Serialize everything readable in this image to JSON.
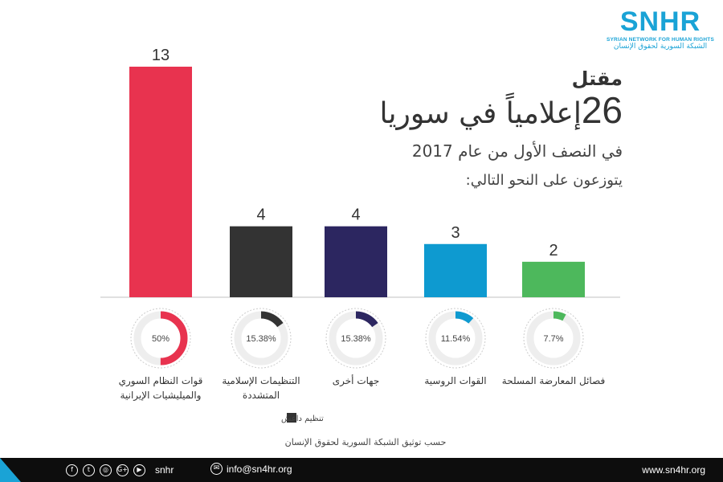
{
  "header": {
    "line1": "مقتل",
    "count": "26",
    "line2": "إعلامياً في سوريا",
    "line3": "في النصف الأول من عام 2017",
    "line4": "يتوزعون على النحو التالي:"
  },
  "logo": {
    "main": "SNHR",
    "english": "SYRIAN NETWORK FOR HUMAN RIGHTS",
    "arabic": "الشبكة السورية لحقوق الإنسان"
  },
  "colors": {
    "regime": "#e8334f",
    "islamist": "#333333",
    "other": "#2c2660",
    "russia": "#0e9ad0",
    "opposition": "#4db85c",
    "ring_track": "#cfcfcf",
    "brand": "#1aa3d6"
  },
  "chart_data": {
    "type": "bar",
    "categories": [
      "قوات النظام السوري\nوالميليشيات الإيرانية",
      "التنظيمات الإسلامية\nالمتشددة",
      "جهات أخرى",
      "القوات الروسية",
      "فصائل المعارضة المسلحة"
    ],
    "values": [
      13,
      4,
      4,
      3,
      2
    ],
    "value_labels": [
      "13",
      "4",
      "4",
      "3",
      "2"
    ],
    "percent_labels": [
      "50%",
      "15.38%",
      "15.38%",
      "11.54%",
      "7.7%"
    ],
    "percents": [
      50,
      15.38,
      15.38,
      11.54,
      7.7
    ],
    "ylim": [
      0,
      13
    ],
    "grid": false
  },
  "legend": {
    "isis_label": "تنظيم داعش"
  },
  "source": "حسب توثيق الشبكة السورية لحقوق الإنسان",
  "footer": {
    "socials": [
      "f",
      "t",
      "◎",
      "G+",
      "▶"
    ],
    "handle": "snhr",
    "email": "info@sn4hr.org",
    "website": "www.sn4hr.org"
  }
}
